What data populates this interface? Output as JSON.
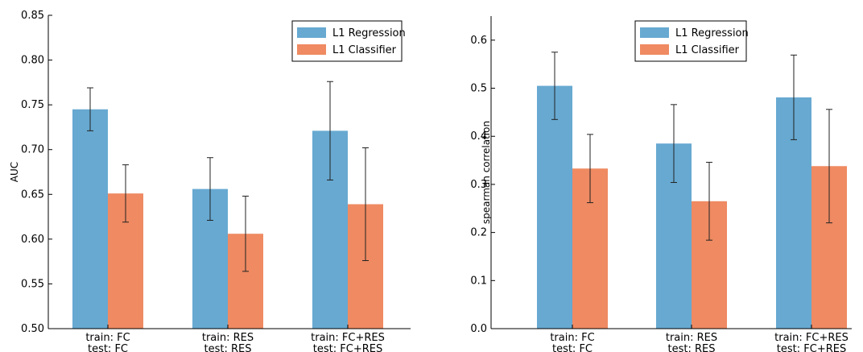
{
  "colors": {
    "L1 Regression": "#67a9d1",
    "L1 Classifier": "#ef8a62",
    "error_bar": "#222222",
    "axis": "#000000"
  },
  "chart_data": [
    {
      "type": "bar",
      "title": "",
      "xlabel": "",
      "ylabel": "AUC",
      "ylim": [
        0.5,
        0.85
      ],
      "yticks": [
        "0.50",
        "0.55",
        "0.60",
        "0.65",
        "0.70",
        "0.75",
        "0.80",
        "0.85"
      ],
      "categories": [
        [
          "train: FC",
          "test: FC"
        ],
        [
          "train: RES",
          "test: RES"
        ],
        [
          "train: FC+RES",
          "test: FC+RES"
        ]
      ],
      "series": [
        {
          "name": "L1 Regression",
          "values": [
            0.745,
            0.656,
            0.721
          ],
          "errors": [
            0.024,
            0.035,
            0.055
          ]
        },
        {
          "name": "L1 Classifier",
          "values": [
            0.651,
            0.606,
            0.639
          ],
          "errors": [
            0.032,
            0.042,
            0.063
          ]
        }
      ],
      "legend": "top-right",
      "grid": false
    },
    {
      "type": "bar",
      "title": "",
      "xlabel": "",
      "ylabel": "spearman correlation",
      "ylim": [
        0.0,
        0.65
      ],
      "yticks": [
        "0.0",
        "0.1",
        "0.2",
        "0.3",
        "0.4",
        "0.5",
        "0.6"
      ],
      "categories": [
        [
          "train: FC",
          "test: FC"
        ],
        [
          "train: RES",
          "test: RES"
        ],
        [
          "train: FC+RES",
          "test: FC+RES"
        ]
      ],
      "series": [
        {
          "name": "L1 Regression",
          "values": [
            0.505,
            0.385,
            0.481
          ],
          "errors": [
            0.07,
            0.081,
            0.088
          ]
        },
        {
          "name": "L1 Classifier",
          "values": [
            0.333,
            0.265,
            0.338
          ],
          "errors": [
            0.071,
            0.081,
            0.118
          ]
        }
      ],
      "legend": "top-right",
      "grid": false
    }
  ]
}
